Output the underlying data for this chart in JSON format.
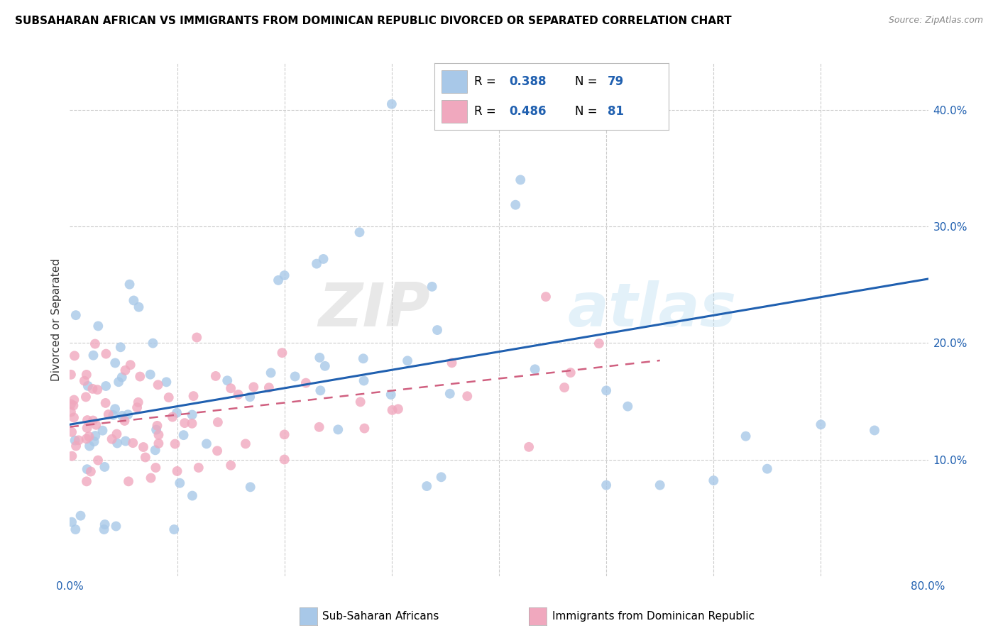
{
  "title": "SUBSAHARAN AFRICAN VS IMMIGRANTS FROM DOMINICAN REPUBLIC DIVORCED OR SEPARATED CORRELATION CHART",
  "source": "Source: ZipAtlas.com",
  "ylabel": "Divorced or Separated",
  "xlim": [
    0.0,
    0.8
  ],
  "ylim": [
    0.0,
    0.44
  ],
  "blue_color": "#a8c8e8",
  "pink_color": "#f0a8be",
  "blue_line_color": "#2060b0",
  "pink_line_color": "#d06080",
  "background_color": "#ffffff",
  "grid_color": "#cccccc",
  "legend_R_blue": "0.388",
  "legend_N_blue": "79",
  "legend_R_pink": "0.486",
  "legend_N_pink": "81",
  "blue_line_x0": 0.0,
  "blue_line_y0": 0.13,
  "blue_line_x1": 0.8,
  "blue_line_y1": 0.255,
  "pink_line_x0": 0.0,
  "pink_line_y0": 0.128,
  "pink_line_x1": 0.55,
  "pink_line_y1": 0.185,
  "watermark_zip": "ZIP",
  "watermark_atlas": "atlas"
}
